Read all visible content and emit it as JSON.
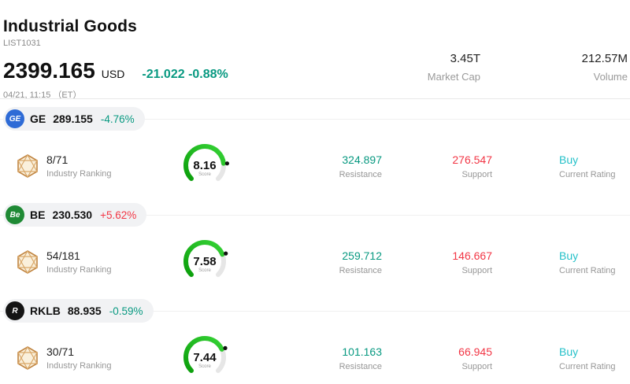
{
  "header": {
    "title": "Industrial Goods",
    "list_id": "LIST1031",
    "price": "2399.165",
    "currency": "USD",
    "change": "-21.022 -0.88%",
    "change_color": "#089981",
    "timestamp": "04/21, 11:15 （ET）",
    "stats": [
      {
        "value": "3.45T",
        "label": "Market Cap"
      },
      {
        "value": "212.57M",
        "label": "Volume"
      }
    ]
  },
  "colors": {
    "down": "#089981",
    "up": "#f23645",
    "rating": "#25c1c9",
    "gauge_green_start": "#0b9e0b",
    "gauge_green_end": "#37d437"
  },
  "rows": [
    {
      "ticker": "GE",
      "logo_text": "GE",
      "logo_bg": "#2e6bd6",
      "price": "289.155",
      "change": "-4.76%",
      "change_color": "#089981",
      "ranking": "8/71",
      "ranking_label": "Industry Ranking",
      "score": 8.16,
      "score_label": "Score",
      "resistance": "324.897",
      "resistance_label": "Resistance",
      "support": "276.547",
      "support_label": "Support",
      "rating": "Buy",
      "rating_label": "Current Rating"
    },
    {
      "ticker": "BE",
      "logo_text": "Be",
      "logo_bg": "#1f8a35",
      "price": "230.530",
      "change": "+5.62%",
      "change_color": "#f23645",
      "ranking": "54/181",
      "ranking_label": "Industry Ranking",
      "score": 7.58,
      "score_label": "Score",
      "resistance": "259.712",
      "resistance_label": "Resistance",
      "support": "146.667",
      "support_label": "Support",
      "rating": "Buy",
      "rating_label": "Current Rating"
    },
    {
      "ticker": "RKLB",
      "logo_text": "R",
      "logo_bg": "#141414",
      "price": "88.935",
      "change": "-0.59%",
      "change_color": "#089981",
      "ranking": "30/71",
      "ranking_label": "Industry Ranking",
      "score": 7.44,
      "score_label": "Score",
      "resistance": "101.163",
      "resistance_label": "Resistance",
      "support": "66.945",
      "support_label": "Support",
      "rating": "Buy",
      "rating_label": "Current Rating"
    }
  ]
}
